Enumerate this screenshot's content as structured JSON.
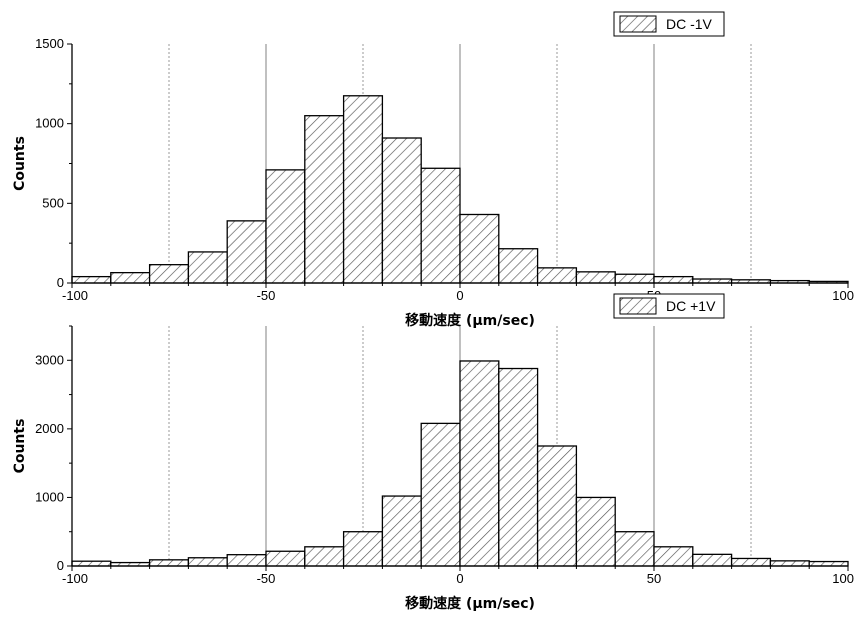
{
  "chart_data": [
    {
      "type": "bar",
      "legend": "DC -1V",
      "xlabel": "移動速度 (μm/sec)",
      "ylabel": "Counts",
      "xlim": [
        -100,
        100
      ],
      "ylim": [
        0,
        1500
      ],
      "xticks": [
        "-100",
        "-50",
        "0",
        "50",
        "100"
      ],
      "yticks": [
        "0",
        "500",
        "1000",
        "1500"
      ],
      "bin_edges": [
        -100,
        -90,
        -80,
        -70,
        -60,
        -50,
        -40,
        -30,
        -20,
        -10,
        0,
        10,
        20,
        30,
        40,
        50,
        60,
        70,
        80,
        90,
        100
      ],
      "values": [
        40,
        65,
        115,
        195,
        390,
        710,
        1050,
        1175,
        910,
        720,
        430,
        215,
        95,
        70,
        55,
        40,
        25,
        20,
        15,
        10
      ],
      "guide_lines": [
        -75,
        -50,
        -25,
        0,
        25,
        50,
        75
      ],
      "legend_position": "top-right",
      "grid": false
    },
    {
      "type": "bar",
      "legend": "DC +1V",
      "xlabel": "移動速度 (μm/sec)",
      "ylabel": "Counts",
      "xlim": [
        -100,
        100
      ],
      "ylim": [
        0,
        3500
      ],
      "xticks": [
        "-100",
        "-50",
        "0",
        "50",
        "100"
      ],
      "yticks": [
        "0",
        "1000",
        "2000",
        "3000"
      ],
      "bin_edges": [
        -100,
        -90,
        -80,
        -70,
        -60,
        -50,
        -40,
        -30,
        -20,
        -10,
        0,
        10,
        20,
        30,
        40,
        50,
        60,
        70,
        80,
        90,
        100
      ],
      "values": [
        70,
        50,
        90,
        120,
        165,
        215,
        280,
        500,
        1020,
        2080,
        2990,
        2880,
        1750,
        1000,
        500,
        280,
        170,
        110,
        75,
        65
      ],
      "guide_lines": [
        -75,
        -50,
        -25,
        0,
        25,
        50,
        75
      ],
      "legend_position": "top-right",
      "grid": false
    }
  ]
}
